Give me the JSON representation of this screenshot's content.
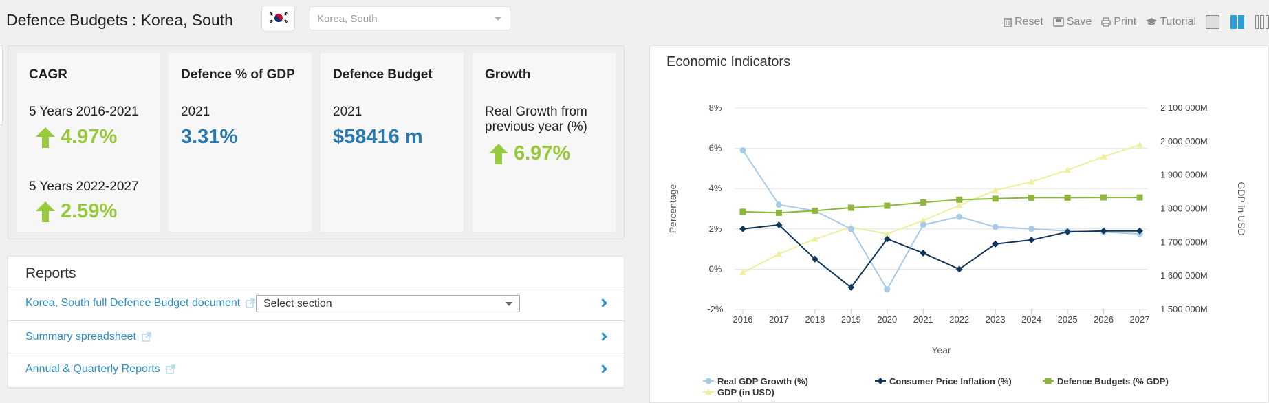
{
  "header": {
    "title": "Defence Budgets : Korea, South",
    "flag_icon": "south-korea-flag-icon",
    "country_select": {
      "value": "Korea, South"
    }
  },
  "toolbar": {
    "reset": "Reset",
    "save": "Save",
    "print": "Print",
    "tutorial": "Tutorial"
  },
  "kpis": {
    "cagr": {
      "title": "CAGR",
      "period1": "5 Years 2016-2021",
      "value1": "4.97%",
      "period2": "5 Years 2022-2027",
      "value2": "2.59%"
    },
    "gdp_share": {
      "title": "Defence % of GDP",
      "year": "2021",
      "value": "3.31%"
    },
    "budget": {
      "title": "Defence Budget",
      "year": "2021",
      "value": "$58416 m"
    },
    "growth": {
      "title": "Growth",
      "desc": "Real Growth from previous year (%)",
      "value": "6.97%"
    }
  },
  "colors": {
    "green": "#97c93d",
    "blue": "#2a7ab0",
    "link": "#2a8fc6"
  },
  "reports": {
    "title": "Reports",
    "items": [
      {
        "label": "Korea, South full Defence Budget document",
        "select_placeholder": "Select section"
      },
      {
        "label": "Summary spreadsheet"
      },
      {
        "label": "Annual & Quarterly Reports"
      }
    ]
  },
  "chart": {
    "title": "Economic Indicators",
    "xlabel": "Year",
    "ylabel_left": "Percentage",
    "ylabel_right": "GDP in USD"
  },
  "chart_data": {
    "type": "line",
    "x": [
      2016,
      2017,
      2018,
      2019,
      2020,
      2021,
      2022,
      2023,
      2024,
      2025,
      2026,
      2027
    ],
    "y_left_ticks": [
      "8%",
      "6%",
      "4%",
      "2%",
      "0%",
      "-2%"
    ],
    "y_left_range": [
      -2,
      8
    ],
    "y_right_ticks": [
      "2 100 000M",
      "2 000 000M",
      "1 900 000M",
      "1 800 000M",
      "1 700 000M",
      "1 600 000M",
      "1 500 000M"
    ],
    "y_right_range": [
      1500000,
      2100000
    ],
    "series": [
      {
        "name": "Real GDP Growth (%)",
        "axis": "left",
        "color": "#a8cbe8",
        "marker": "circle",
        "values": [
          5.9,
          3.2,
          2.9,
          2.0,
          -1.0,
          2.2,
          2.6,
          2.1,
          2.0,
          1.9,
          1.85,
          1.75
        ]
      },
      {
        "name": "Consumer Price Inflation (%)",
        "axis": "left",
        "color": "#12365a",
        "marker": "diamond",
        "values": [
          2.0,
          2.2,
          0.5,
          -0.9,
          1.5,
          0.8,
          0.0,
          1.25,
          1.45,
          1.85,
          1.9,
          1.9
        ]
      },
      {
        "name": "Defence Budgets (% GDP)",
        "axis": "left",
        "color": "#8db63c",
        "marker": "square",
        "values": [
          2.85,
          2.8,
          2.9,
          3.05,
          3.15,
          3.31,
          3.45,
          3.5,
          3.55,
          3.55,
          3.56,
          3.56
        ]
      },
      {
        "name": "GDP (in USD)",
        "axis": "right",
        "color": "#eef0a0",
        "marker": "triangle",
        "values": [
          1610000,
          1665000,
          1710000,
          1745000,
          1725000,
          1765000,
          1810000,
          1855000,
          1880000,
          1915000,
          1955000,
          1990000
        ]
      }
    ],
    "legend_position": "bottom",
    "grid": true
  }
}
